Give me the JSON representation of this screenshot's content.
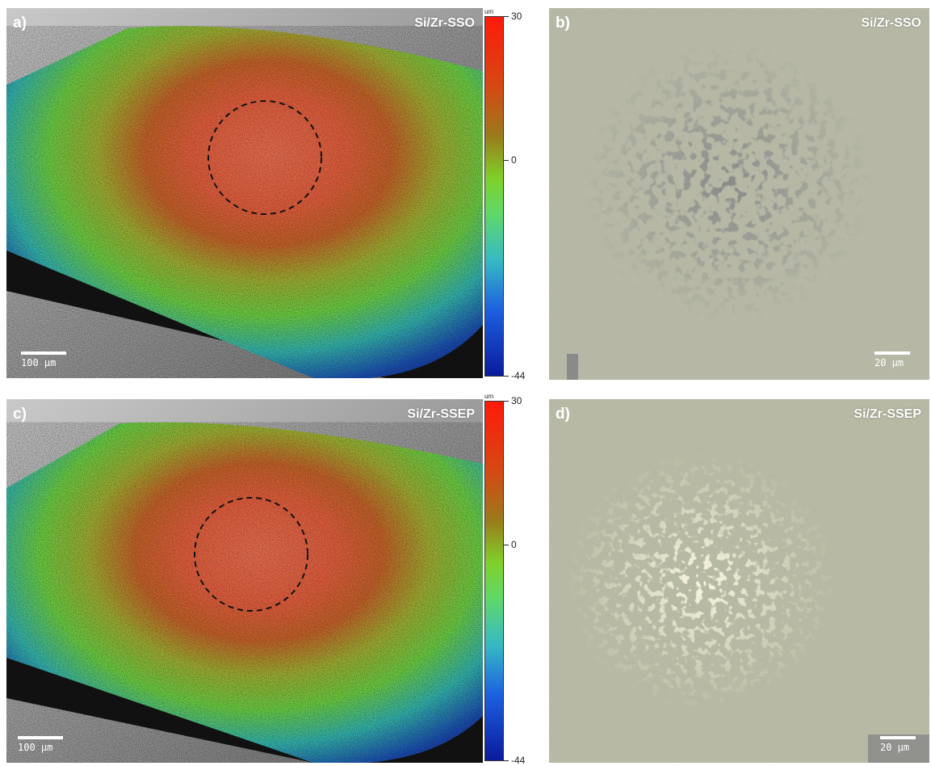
{
  "panels": [
    {
      "letter": "a)",
      "sample": "Si/Zr-SSO",
      "scale": "100 µm"
    },
    {
      "letter": "b)",
      "sample": "Si/Zr-SSO",
      "scale": "20 µm"
    },
    {
      "letter": "c)",
      "sample": "Si/Zr-SSEP",
      "scale": "100 µm"
    },
    {
      "letter": "d)",
      "sample": "Si/Zr-SSEP",
      "scale": "20 µm"
    }
  ],
  "colorbars": [
    {
      "unit": "um",
      "max": "30",
      "mid": "0",
      "min": "-44"
    },
    {
      "unit": "um",
      "max": "30",
      "mid": "0",
      "min": "-44"
    }
  ],
  "colors": {
    "height_high": "#e8321c",
    "height_mid": "#8fd63a",
    "height_low": "#17309a",
    "micrograph_bg": "#b7b9a6"
  }
}
